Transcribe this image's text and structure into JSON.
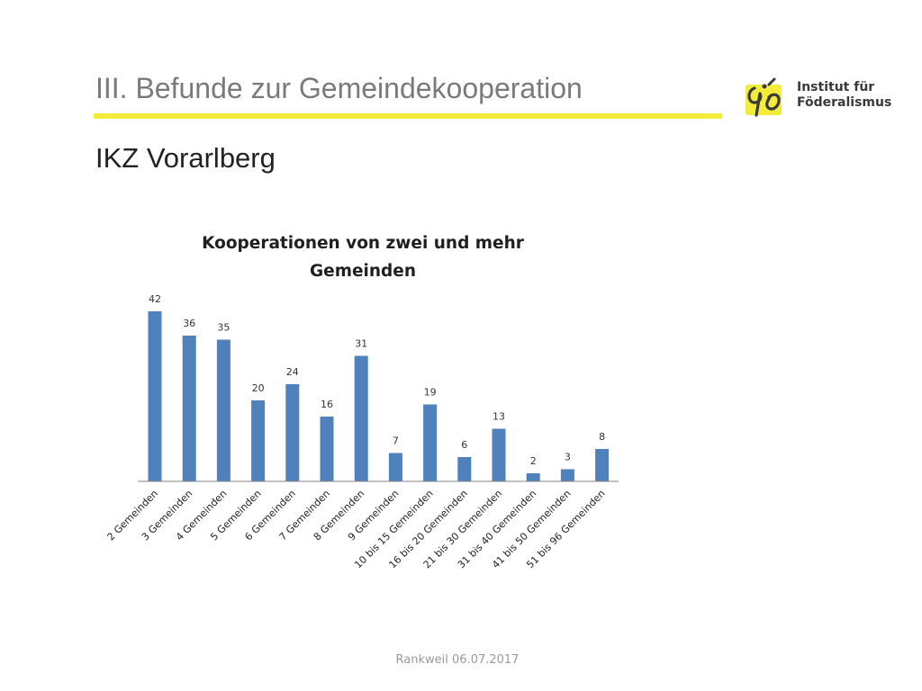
{
  "header": {
    "title": "III. Befunde zur Gemeindekooperation",
    "subtitle": "IKZ Vorarlberg",
    "accent_color": "#f3ec3a"
  },
  "logo": {
    "line1": "Institut für",
    "line2": "Föderalismus",
    "mark_color": "#f3ec3a",
    "mark_stroke": "#3a3a3a"
  },
  "chart_data": {
    "type": "bar",
    "title": "Kooperationen von zwei und mehr Gemeinden",
    "title_lines": [
      "Kooperationen von zwei und mehr",
      "Gemeinden"
    ],
    "categories": [
      "2 Gemeinden",
      "3 Gemeinden",
      "4 Gemeinden",
      "5 Gemeinden",
      "6 Gemeinden",
      "7 Gemeinden",
      "8 Gemeinden",
      "9 Gemeinden",
      "10 bis 15 Gemeinden",
      "16 bis 20 Gemeinden",
      "21 bis 30 Gemeinden",
      "31 bis 40 Gemeinden",
      "41 bis 50 Gemeinden",
      "51 bis 96 Gemeinden"
    ],
    "values": [
      42,
      36,
      35,
      20,
      24,
      16,
      31,
      7,
      19,
      6,
      13,
      2,
      3,
      8
    ],
    "xlabel": "",
    "ylabel": "",
    "ylim": [
      0,
      42
    ],
    "bar_color": "#4f81bd",
    "grid": false,
    "legend": "none"
  },
  "footer": {
    "text": "Rankweil 06.07.2017"
  }
}
